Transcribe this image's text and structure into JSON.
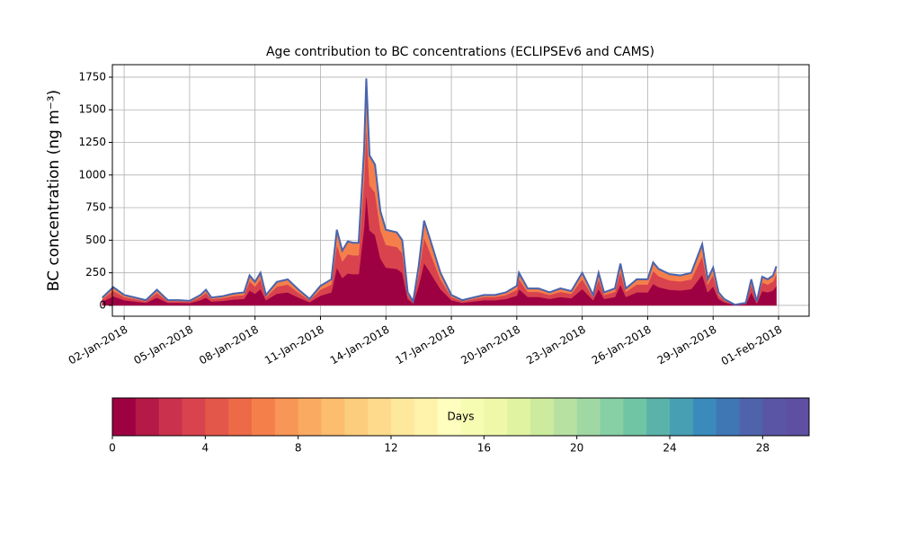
{
  "chart_data": [
    {
      "type": "stacked_area",
      "title": "Age contribution to BC concentrations (ECLIPSEv6 and CAMS)",
      "ylabel": "BC concentration (ng m⁻³)",
      "x": [
        1,
        1.5,
        2,
        2.5,
        3,
        3.5,
        4,
        4.5,
        5,
        5.5,
        5.75,
        6,
        6.5,
        7,
        7.5,
        7.75,
        8,
        8.25,
        8.5,
        9,
        9.5,
        10,
        10.5,
        11,
        11.5,
        11.75,
        12,
        12.25,
        12.5,
        12.75,
        13,
        13.1,
        13.25,
        13.5,
        13.75,
        14,
        14.5,
        14.75,
        15,
        15.25,
        15.5,
        15.75,
        16,
        16.5,
        17,
        17.5,
        18,
        18.5,
        19,
        19.5,
        20,
        20.1,
        20.5,
        21,
        21.5,
        22,
        22.5,
        23,
        23.5,
        23.75,
        24,
        24.5,
        24.75,
        25,
        25.5,
        26,
        26.25,
        26.5,
        27,
        27.5,
        28,
        28.5,
        28.75,
        29,
        29.25,
        29.5,
        30,
        30.5,
        30.75,
        31,
        31.25,
        31.5,
        31.75,
        31.9
      ],
      "series": [
        {
          "color": "#9e0142",
          "values": [
            30,
            70,
            40,
            30,
            20,
            60,
            20,
            20,
            18,
            40,
            60,
            30,
            35,
            45,
            50,
            115,
            90,
            125,
            40,
            90,
            100,
            60,
            25,
            75,
            100,
            290,
            210,
            245,
            240,
            240,
            600,
            870,
            575,
            540,
            360,
            290,
            280,
            250,
            50,
            15,
            150,
            325,
            260,
            125,
            40,
            20,
            30,
            40,
            40,
            50,
            75,
            125,
            65,
            65,
            50,
            65,
            55,
            125,
            40,
            125,
            50,
            65,
            160,
            65,
            100,
            100,
            165,
            140,
            120,
            115,
            125,
            235,
            100,
            145,
            50,
            25,
            3,
            10,
            100,
            15,
            110,
            100,
            115,
            150
          ]
        },
        {
          "color": "#d8434e",
          "values": [
            18,
            42,
            24,
            18,
            12,
            36,
            12,
            12,
            10,
            24,
            36,
            18,
            21,
            27,
            30,
            69,
            54,
            75,
            24,
            54,
            60,
            36,
            15,
            45,
            60,
            174,
            126,
            147,
            144,
            144,
            360,
            522,
            345,
            324,
            216,
            174,
            168,
            150,
            30,
            9,
            90,
            195,
            156,
            75,
            24,
            12,
            18,
            24,
            24,
            30,
            45,
            75,
            39,
            39,
            30,
            39,
            33,
            75,
            24,
            75,
            30,
            39,
            96,
            39,
            60,
            60,
            99,
            84,
            72,
            69,
            75,
            141,
            60,
            87,
            30,
            15,
            1,
            6,
            60,
            9,
            66,
            60,
            69,
            90
          ]
        },
        {
          "color": "#f47f4b",
          "values": [
            12,
            28,
            16,
            12,
            8,
            24,
            8,
            8,
            7,
            16,
            24,
            12,
            14,
            18,
            20,
            46,
            36,
            50,
            16,
            36,
            40,
            24,
            10,
            30,
            40,
            116,
            84,
            98,
            96,
            96,
            240,
            348,
            230,
            216,
            144,
            116,
            112,
            100,
            20,
            6,
            60,
            130,
            104,
            50,
            16,
            8,
            12,
            16,
            16,
            20,
            30,
            50,
            26,
            26,
            20,
            26,
            22,
            50,
            16,
            50,
            20,
            26,
            64,
            26,
            40,
            40,
            66,
            56,
            48,
            46,
            50,
            94,
            40,
            58,
            20,
            10,
            1,
            4,
            40,
            6,
            44,
            40,
            46,
            60
          ]
        }
      ],
      "outline_color": "#4a64ad",
      "xlim": [
        1.46,
        33.4
      ],
      "xticks": [
        {
          "value": 2,
          "label": "02-Jan-2018"
        },
        {
          "value": 5,
          "label": "05-Jan-2018"
        },
        {
          "value": 8,
          "label": "08-Jan-2018"
        },
        {
          "value": 11,
          "label": "11-Jan-2018"
        },
        {
          "value": 14,
          "label": "14-Jan-2018"
        },
        {
          "value": 17,
          "label": "17-Jan-2018"
        },
        {
          "value": 20,
          "label": "20-Jan-2018"
        },
        {
          "value": 23,
          "label": "23-Jan-2018"
        },
        {
          "value": 26,
          "label": "26-Jan-2018"
        },
        {
          "value": 29,
          "label": "29-Jan-2018"
        },
        {
          "value": 32,
          "label": "01-Feb-2018"
        }
      ],
      "ylim": [
        -83,
        1846
      ],
      "yticks": [
        0,
        250,
        500,
        750,
        1000,
        1250,
        1500,
        1750
      ],
      "grid": true
    },
    {
      "type": "colorbar",
      "label": "Days",
      "xlim": [
        0,
        30
      ],
      "xticks": [
        0,
        4,
        8,
        12,
        16,
        20,
        24,
        28
      ],
      "colors": [
        "#9e0142",
        "#b41947",
        "#c9314c",
        "#d8434e",
        "#e3574b",
        "#ec6a47",
        "#f47f4b",
        "#f89657",
        "#fbaa62",
        "#fdbd6f",
        "#fdcd7e",
        "#fedb8c",
        "#fee89b",
        "#fff3ab",
        "#fffebe",
        "#f7fcb3",
        "#eef8a8",
        "#e0f3a1",
        "#cdeb9e",
        "#b7e1a1",
        "#a0d8a4",
        "#87cfa4",
        "#70c5a5",
        "#5bb2a9",
        "#479fb3",
        "#3a8bbc",
        "#3f77b5",
        "#4e63ac",
        "#5b55a5",
        "#5e4fa2"
      ]
    }
  ]
}
